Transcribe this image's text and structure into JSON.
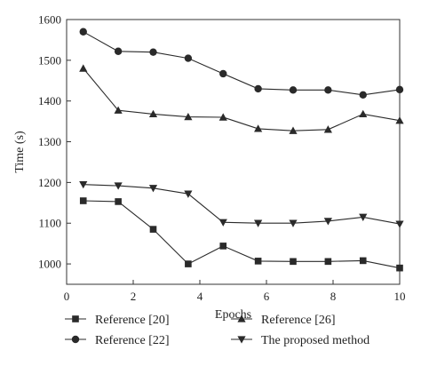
{
  "chart_data": {
    "type": "line",
    "title": "",
    "xlabel": "Epochs",
    "ylabel": "Time (s)",
    "xlim": [
      0,
      10
    ],
    "ylim": [
      950,
      1600
    ],
    "xticks": [
      0,
      2,
      4,
      6,
      8,
      10
    ],
    "yticks": [
      1000,
      1100,
      1200,
      1300,
      1400,
      1500,
      1600
    ],
    "grid": false,
    "legend_position": "bottom",
    "colors": {
      "line": "#2a2a2a",
      "axis": "#333333",
      "background": "#ffffff"
    },
    "x": [
      0.5,
      1.55,
      2.6,
      3.65,
      4.7,
      5.75,
      6.8,
      7.85,
      8.9,
      10
    ],
    "series": [
      {
        "name": "Reference [20]",
        "marker": "square",
        "values": [
          1155,
          1153,
          1085,
          1000,
          1044,
          1007,
          1006,
          1006,
          1008,
          990
        ]
      },
      {
        "name": "Reference [22]",
        "marker": "circle",
        "values": [
          1570,
          1522,
          1520,
          1505,
          1467,
          1430,
          1427,
          1427,
          1415,
          1428
        ]
      },
      {
        "name": "Reference [26]",
        "marker": "triangle-up",
        "values": [
          1480,
          1377,
          1368,
          1361,
          1360,
          1332,
          1327,
          1330,
          1368,
          1352
        ]
      },
      {
        "name": "The proposed method",
        "marker": "triangle-down",
        "values": [
          1195,
          1192,
          1186,
          1172,
          1102,
          1100,
          1100,
          1105,
          1115,
          1098
        ]
      }
    ]
  }
}
